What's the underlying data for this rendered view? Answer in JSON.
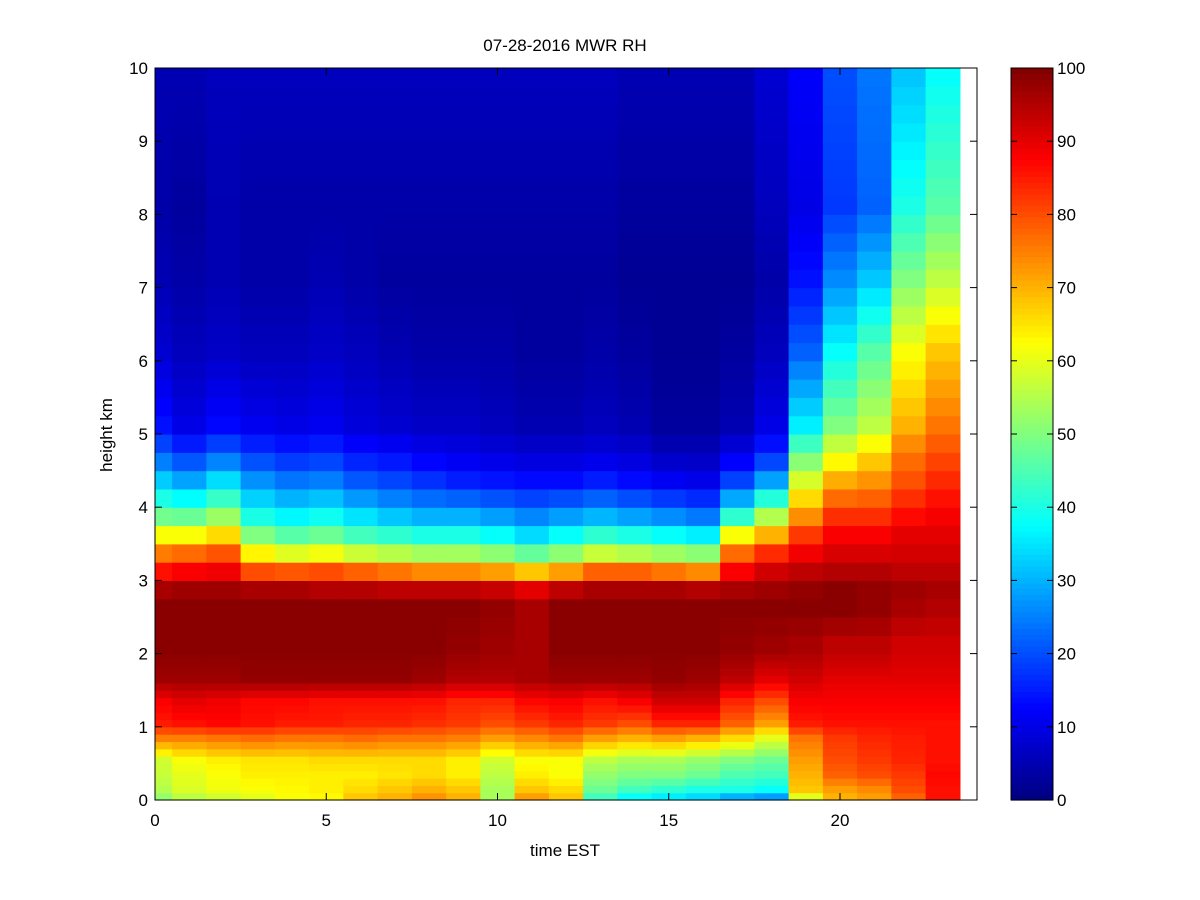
{
  "chart_data": {
    "type": "heatmap",
    "title": "07-28-2016 MWR RH",
    "xlabel": "time EST",
    "ylabel": "height km",
    "xlim": [
      0,
      24
    ],
    "ylim": [
      0,
      10
    ],
    "xticks": [
      0,
      5,
      10,
      15,
      20
    ],
    "yticks": [
      0,
      1,
      2,
      3,
      4,
      5,
      6,
      7,
      8,
      9,
      10
    ],
    "clim": [
      0,
      100
    ],
    "colorbar_ticks": [
      0,
      10,
      20,
      30,
      40,
      50,
      60,
      70,
      80,
      90,
      100
    ],
    "colormap": "jet",
    "x_centers": [
      0,
      1,
      2,
      3,
      4,
      5,
      6,
      7,
      8,
      9,
      10,
      11,
      12,
      13,
      14,
      15,
      16,
      17,
      18,
      19,
      20,
      21,
      22,
      23
    ],
    "height_levels": [
      0,
      0.1,
      0.2,
      0.3,
      0.4,
      0.5,
      0.6,
      0.7,
      0.8,
      0.9,
      1.0,
      1.1,
      1.2,
      1.3,
      1.4,
      1.5,
      1.6,
      1.7,
      1.8,
      1.9,
      2.0,
      2.25,
      2.5,
      2.75,
      3.0,
      3.25,
      3.5,
      3.75,
      4.0,
      4.25,
      4.5,
      4.75,
      5.0,
      5.25,
      5.5,
      5.75,
      6.0,
      6.25,
      6.5,
      6.75,
      7.0,
      7.25,
      7.5,
      7.75,
      8.0,
      8.25,
      8.5,
      8.75,
      9.0,
      9.25,
      9.5,
      9.75
    ],
    "profile_points": {
      "heights": [
        0.0,
        0.1,
        0.3,
        0.5,
        0.8,
        1.0,
        1.3,
        1.6,
        2.0,
        2.5,
        2.75,
        2.9,
        3.0,
        3.2,
        3.5,
        3.8,
        4.2,
        4.6,
        5.0,
        6.0,
        7.0,
        8.0,
        9.75
      ],
      "rows": [
        [
          52,
          55,
          57,
          58,
          75,
          85,
          88,
          97,
          99,
          99,
          96,
          92,
          86,
          78,
          62,
          46,
          34,
          22,
          14,
          8,
          5,
          4,
          5
        ],
        [
          56,
          59,
          60,
          62,
          75,
          86,
          90,
          97,
          99,
          99,
          97,
          93,
          88,
          80,
          62,
          45,
          30,
          18,
          10,
          6,
          4,
          3,
          5
        ],
        [
          58,
          61,
          62,
          64,
          76,
          87,
          89,
          97,
          99,
          99,
          97,
          94,
          89,
          82,
          66,
          50,
          36,
          22,
          13,
          7,
          5,
          5,
          6
        ],
        [
          60,
          62,
          64,
          65,
          77,
          86,
          87,
          98,
          99,
          99,
          96,
          90,
          80,
          66,
          50,
          38,
          28,
          18,
          11,
          6,
          4,
          4,
          6
        ],
        [
          62,
          63,
          64,
          65,
          76,
          85,
          87,
          98,
          99,
          99,
          96,
          90,
          79,
          62,
          46,
          35,
          25,
          16,
          10,
          6,
          4,
          4,
          6
        ],
        [
          63,
          64,
          64,
          66,
          76,
          85,
          86,
          98,
          99,
          99,
          95,
          90,
          80,
          64,
          48,
          37,
          26,
          17,
          11,
          7,
          5,
          4,
          6
        ],
        [
          68,
          66,
          64,
          66,
          77,
          84,
          86,
          98,
          99,
          99,
          95,
          89,
          78,
          60,
          44,
          33,
          22,
          14,
          9,
          6,
          4,
          4,
          6
        ],
        [
          70,
          68,
          65,
          66,
          76,
          84,
          86,
          98,
          99,
          99,
          94,
          88,
          76,
          58,
          42,
          30,
          20,
          13,
          8,
          5,
          3,
          4,
          6
        ],
        [
          73,
          70,
          66,
          66,
          76,
          83,
          86,
          97,
          99,
          99,
          94,
          87,
          74,
          56,
          40,
          28,
          18,
          11,
          7,
          4,
          3,
          4,
          6
        ],
        [
          70,
          68,
          64,
          64,
          75,
          82,
          84,
          95,
          98,
          99,
          94,
          86,
          74,
          56,
          40,
          28,
          16,
          10,
          7,
          4,
          3,
          4,
          6
        ],
        [
          54,
          54,
          56,
          58,
          72,
          80,
          84,
          95,
          97,
          98,
          93,
          85,
          72,
          54,
          38,
          26,
          15,
          9,
          6,
          4,
          3,
          4,
          6
        ],
        [
          72,
          68,
          64,
          62,
          74,
          82,
          87,
          96,
          96,
          96,
          90,
          82,
          68,
          50,
          34,
          24,
          14,
          8,
          5,
          3,
          3,
          4,
          6
        ],
        [
          68,
          66,
          62,
          62,
          76,
          84,
          88,
          97,
          99,
          99,
          94,
          86,
          72,
          54,
          38,
          26,
          14,
          8,
          5,
          3,
          3,
          4,
          6
        ],
        [
          44,
          48,
          52,
          56,
          72,
          82,
          86,
          97,
          99,
          99,
          96,
          90,
          78,
          60,
          42,
          28,
          16,
          9,
          6,
          4,
          3,
          4,
          6
        ],
        [
          38,
          44,
          50,
          54,
          70,
          80,
          88,
          97,
          99,
          99,
          96,
          90,
          78,
          58,
          40,
          26,
          14,
          8,
          5,
          3,
          2,
          3,
          5
        ],
        [
          36,
          42,
          50,
          54,
          72,
          84,
          92,
          98,
          99,
          99,
          96,
          88,
          76,
          56,
          38,
          24,
          12,
          6,
          3,
          2,
          2,
          3,
          5
        ],
        [
          34,
          40,
          48,
          52,
          70,
          84,
          92,
          97,
          99,
          99,
          95,
          88,
          74,
          54,
          36,
          22,
          11,
          6,
          3,
          2,
          2,
          3,
          5
        ],
        [
          30,
          40,
          45,
          50,
          66,
          78,
          84,
          94,
          98,
          99,
          96,
          92,
          88,
          80,
          62,
          38,
          20,
          10,
          5,
          3,
          2,
          3,
          5
        ],
        [
          28,
          38,
          44,
          48,
          60,
          72,
          80,
          90,
          97,
          99,
          97,
          95,
          92,
          86,
          70,
          52,
          30,
          16,
          10,
          6,
          4,
          6,
          8
        ],
        [
          60,
          68,
          70,
          72,
          76,
          85,
          88,
          92,
          96,
          99,
          98,
          96,
          94,
          90,
          82,
          72,
          60,
          48,
          36,
          22,
          14,
          10,
          12
        ],
        [
          70,
          72,
          78,
          80,
          82,
          86,
          88,
          90,
          94,
          99,
          99,
          97,
          95,
          92,
          88,
          82,
          72,
          60,
          50,
          38,
          26,
          18,
          20
        ],
        [
          72,
          74,
          80,
          82,
          84,
          86,
          88,
          90,
          94,
          98,
          98,
          97,
          95,
          92,
          88,
          82,
          74,
          66,
          56,
          46,
          32,
          22,
          24
        ],
        [
          78,
          80,
          82,
          84,
          85,
          86,
          88,
          90,
          92,
          96,
          97,
          96,
          94,
          92,
          90,
          86,
          80,
          76,
          70,
          62,
          50,
          40,
          32
        ],
        [
          86,
          86,
          87,
          86,
          86,
          86,
          88,
          90,
          92,
          95,
          96,
          95,
          94,
          92,
          90,
          88,
          84,
          80,
          76,
          68,
          56,
          46,
          38
        ]
      ]
    }
  }
}
